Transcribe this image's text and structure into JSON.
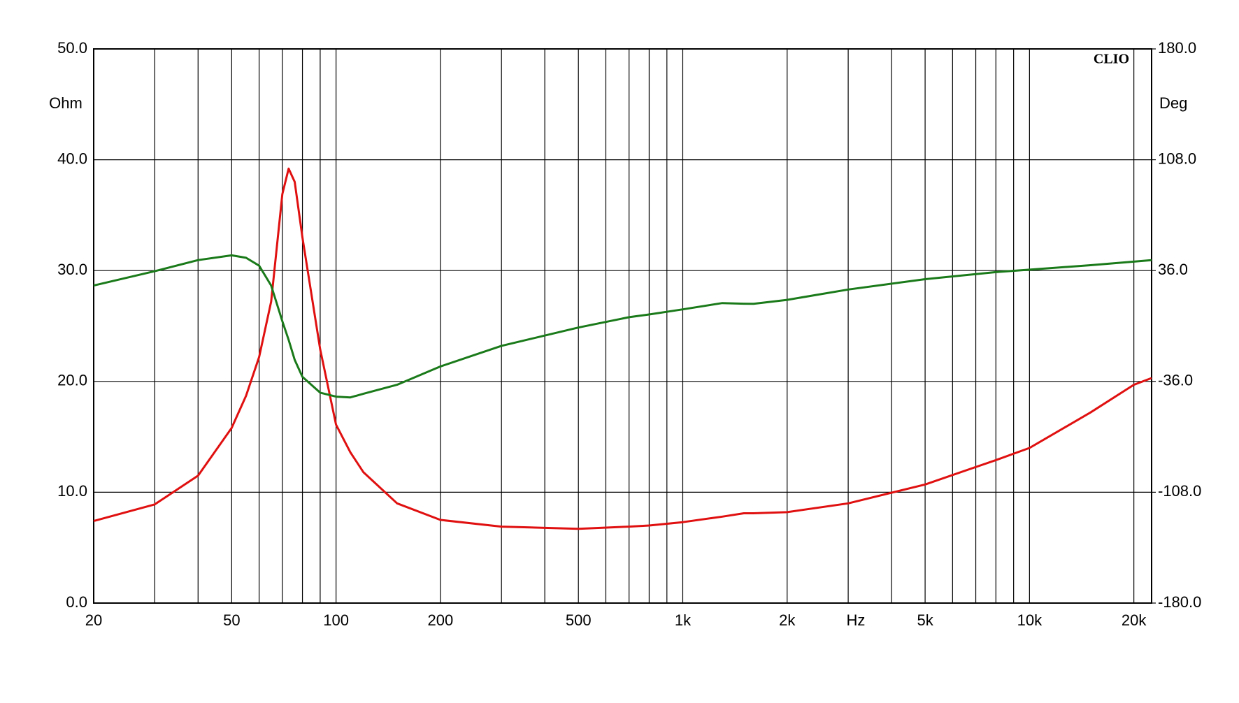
{
  "chart_data": {
    "type": "line",
    "logo": "CLIO",
    "x_label": "Hz",
    "y_label": "Ohm",
    "y2_label": "Deg",
    "log_x": true,
    "grid": true,
    "xlim": [
      20,
      22500
    ],
    "xticks": [
      20,
      50,
      100,
      200,
      500,
      {
        "value": 1000,
        "label": "1k"
      },
      {
        "value": 2000,
        "label": "2k"
      },
      {
        "value": 5000,
        "label": "5k"
      },
      {
        "value": 10000,
        "label": "10k"
      },
      {
        "value": 20000,
        "label": "20k"
      }
    ],
    "xminor": [
      30,
      40,
      60,
      70,
      80,
      90,
      300,
      400,
      600,
      700,
      800,
      900,
      3000,
      4000,
      6000,
      7000,
      8000,
      9000
    ],
    "ylim": [
      0,
      50
    ],
    "yticks": [
      {
        "value": 0,
        "label": "0.0"
      },
      {
        "value": 10,
        "label": "10.0"
      },
      {
        "value": 20,
        "label": "20.0"
      },
      {
        "value": 30,
        "label": "30.0"
      },
      {
        "value": 40,
        "label": "40.0"
      },
      {
        "value": 50,
        "label": "50.0"
      }
    ],
    "y2lim": [
      -180,
      180
    ],
    "y2ticks": [
      {
        "value": -180,
        "label": "-180.0"
      },
      {
        "value": -108,
        "label": "-108.0"
      },
      {
        "value": -36,
        "label": "-36.0"
      },
      {
        "value": 36,
        "label": "36.0"
      },
      {
        "value": 108,
        "label": "108.0"
      },
      {
        "value": 180,
        "label": "180.0"
      }
    ],
    "x": [
      20,
      30,
      40,
      50,
      55,
      60,
      65,
      70,
      73,
      76,
      80,
      90,
      100,
      110,
      120,
      150,
      200,
      300,
      500,
      700,
      800,
      1000,
      1300,
      1500,
      1600,
      2000,
      3000,
      5000,
      8000,
      10000,
      15000,
      20000,
      22500
    ],
    "series": [
      {
        "color": "#e01010",
        "values": [
          7.4,
          8.9,
          11.5,
          15.8,
          18.7,
          22.2,
          27.2,
          36.9,
          39.2,
          38.0,
          33.0,
          22.9,
          16.1,
          13.6,
          11.8,
          9.0,
          7.5,
          6.9,
          6.7,
          6.9,
          7.0,
          7.3,
          7.8,
          8.1,
          8.1,
          8.2,
          9.0,
          10.7,
          12.9,
          14.0,
          17.2,
          19.7,
          20.3
        ]
      },
      {
        "color": "#1a7a1a",
        "axis": "y2",
        "values": [
          26.3,
          35.6,
          42.8,
          45.9,
          44.3,
          39.2,
          26.3,
          3.1,
          -9.0,
          -22.0,
          -33.0,
          -43.3,
          -45.9,
          -46.4,
          -44.0,
          -38.2,
          -26.3,
          -12.9,
          -1.0,
          5.7,
          7.5,
          10.8,
          14.9,
          14.5,
          14.4,
          17.0,
          23.7,
          30.4,
          35.0,
          36.6,
          39.5,
          41.8,
          42.8
        ]
      }
    ]
  }
}
